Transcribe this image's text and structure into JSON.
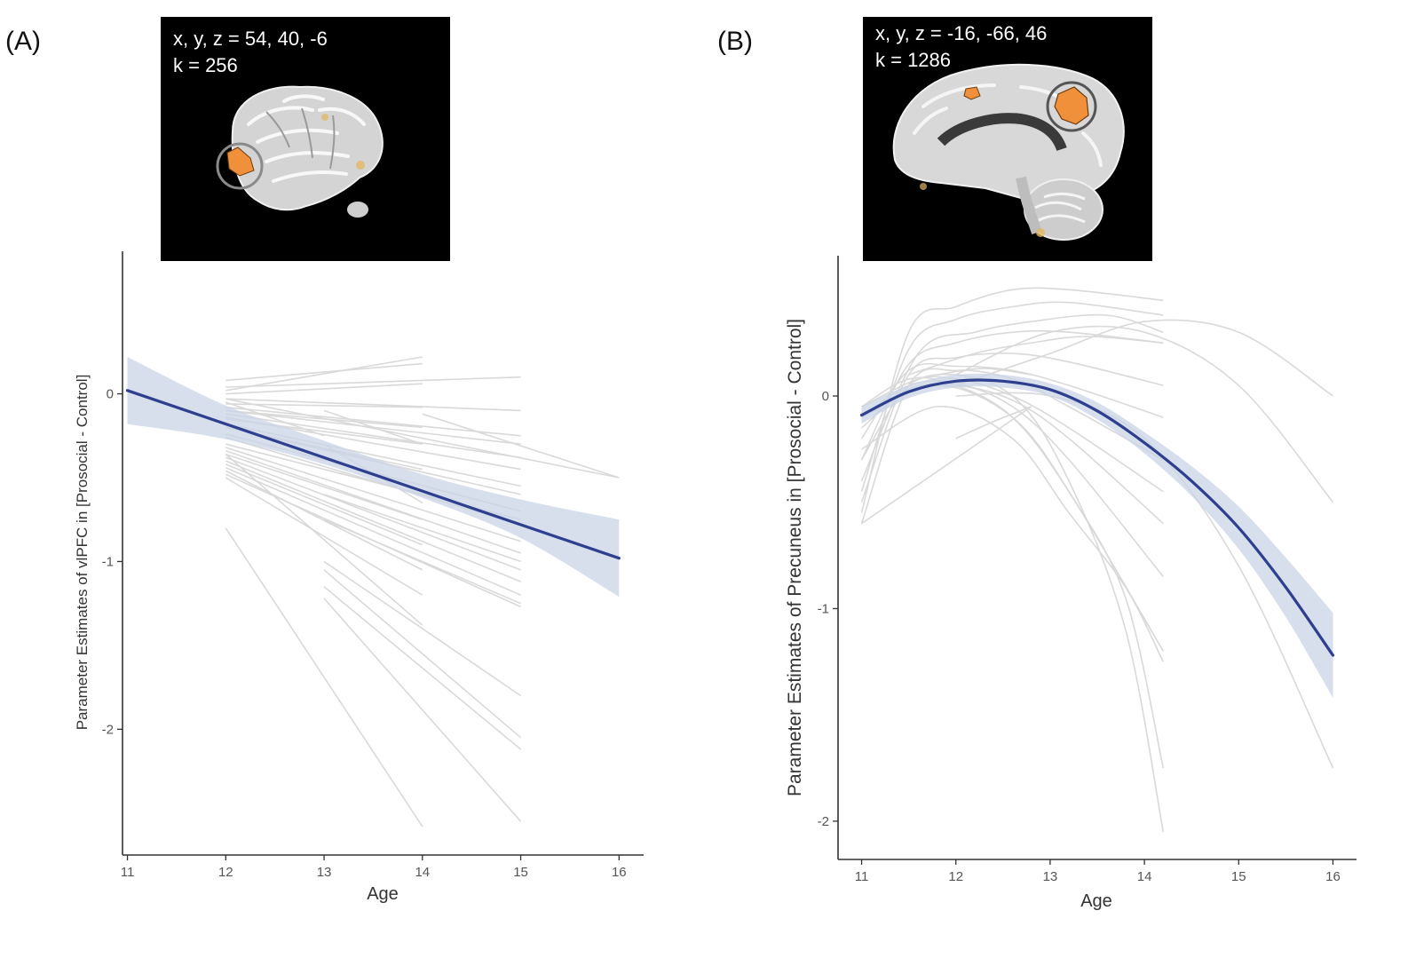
{
  "colors": {
    "fit_line": "#2e3f8f",
    "ribbon": "#c9d3e6",
    "individual_lines": "#d9d9d9",
    "axis": "#333333",
    "inset_bg": "#000000",
    "activation": "#f0903a"
  },
  "chart_data": [
    {
      "panel": "(A)",
      "type": "line",
      "inset": {
        "coords": "x, y, z = 54, 40, -6",
        "cluster": "k = 256",
        "view": "lateral right hemisphere",
        "region_icon": "brain-lateral-icon"
      },
      "xlabel": "Age",
      "ylabel": "Parameter Estimates of vlPFC in [Prosocial - Control]",
      "xlim": [
        10.95,
        16.25
      ],
      "ylim": [
        -2.75,
        0.85
      ],
      "xticks": [
        11,
        12,
        13,
        14,
        15,
        16
      ],
      "yticks": [
        0,
        -1,
        -2
      ],
      "model": "linear",
      "fit": {
        "x": [
          11,
          16
        ],
        "y": [
          0.02,
          -0.98
        ]
      },
      "ribbon": {
        "x": [
          11,
          12,
          13,
          14,
          15,
          16
        ],
        "lower": [
          -0.18,
          -0.27,
          -0.42,
          -0.62,
          -0.86,
          -1.21
        ],
        "upper": [
          0.22,
          -0.07,
          -0.28,
          -0.48,
          -0.63,
          -0.75
        ]
      },
      "individual_lines": [
        {
          "x": [
            12,
            14
          ],
          "y": [
            0.02,
            0.22
          ]
        },
        {
          "x": [
            12,
            14
          ],
          "y": [
            0.08,
            0.18
          ]
        },
        {
          "x": [
            12,
            15
          ],
          "y": [
            0.04,
            0.1
          ]
        },
        {
          "x": [
            12,
            14
          ],
          "y": [
            0.0,
            0.06
          ]
        },
        {
          "x": [
            12,
            15
          ],
          "y": [
            -0.03,
            -0.1
          ]
        },
        {
          "x": [
            12,
            16
          ],
          "y": [
            -0.03,
            -0.5
          ]
        },
        {
          "x": [
            12,
            14
          ],
          "y": [
            -0.06,
            -0.08
          ]
        },
        {
          "x": [
            12,
            15
          ],
          "y": [
            -0.08,
            -0.25
          ]
        },
        {
          "x": [
            12,
            15
          ],
          "y": [
            -0.1,
            -0.3
          ]
        },
        {
          "x": [
            12,
            14
          ],
          "y": [
            -0.1,
            -0.2
          ]
        },
        {
          "x": [
            12,
            15
          ],
          "y": [
            -0.12,
            -0.38
          ]
        },
        {
          "x": [
            12,
            15
          ],
          "y": [
            -0.14,
            -0.45
          ]
        },
        {
          "x": [
            12,
            14
          ],
          "y": [
            -0.15,
            -0.3
          ]
        },
        {
          "x": [
            12,
            15
          ],
          "y": [
            -0.18,
            -0.55
          ]
        },
        {
          "x": [
            12,
            15
          ],
          "y": [
            -0.2,
            -0.6
          ]
        },
        {
          "x": [
            12,
            14
          ],
          "y": [
            -0.2,
            -0.45
          ]
        },
        {
          "x": [
            12,
            15
          ],
          "y": [
            -0.24,
            -0.7
          ]
        },
        {
          "x": [
            12,
            15
          ],
          "y": [
            -0.26,
            -0.78
          ]
        },
        {
          "x": [
            12,
            14
          ],
          "y": [
            -0.3,
            -0.6
          ]
        },
        {
          "x": [
            12,
            15
          ],
          "y": [
            -0.32,
            -0.88
          ]
        },
        {
          "x": [
            12,
            15
          ],
          "y": [
            -0.34,
            -0.95
          ]
        },
        {
          "x": [
            12,
            14
          ],
          "y": [
            -0.36,
            -0.75
          ]
        },
        {
          "x": [
            12,
            15
          ],
          "y": [
            -0.38,
            -1.05
          ]
        },
        {
          "x": [
            12,
            15
          ],
          "y": [
            -0.4,
            -1.12
          ]
        },
        {
          "x": [
            12,
            14
          ],
          "y": [
            -0.42,
            -0.9
          ]
        },
        {
          "x": [
            12,
            15
          ],
          "y": [
            -0.44,
            -1.2
          ]
        },
        {
          "x": [
            12,
            14
          ],
          "y": [
            -0.46,
            -1.05
          ]
        },
        {
          "x": [
            12,
            15
          ],
          "y": [
            -0.48,
            -1.27
          ]
        },
        {
          "x": [
            12,
            14
          ],
          "y": [
            -0.5,
            -1.2
          ]
        },
        {
          "x": [
            12,
            14
          ],
          "y": [
            -0.36,
            -1.38
          ]
        },
        {
          "x": [
            13,
            15
          ],
          "y": [
            -0.45,
            -0.75
          ]
        },
        {
          "x": [
            13,
            15
          ],
          "y": [
            -0.6,
            -1.0
          ]
        },
        {
          "x": [
            13,
            15
          ],
          "y": [
            -0.75,
            -1.25
          ]
        },
        {
          "x": [
            13,
            15
          ],
          "y": [
            -1.0,
            -1.8
          ]
        },
        {
          "x": [
            13,
            15
          ],
          "y": [
            -1.05,
            -2.05
          ]
        },
        {
          "x": [
            13,
            15
          ],
          "y": [
            -1.15,
            -2.12
          ]
        },
        {
          "x": [
            13,
            15
          ],
          "y": [
            -1.22,
            -2.55
          ]
        },
        {
          "x": [
            12,
            14
          ],
          "y": [
            -0.8,
            -2.58
          ]
        },
        {
          "x": [
            13,
            14
          ],
          "y": [
            -0.1,
            -0.3
          ]
        },
        {
          "x": [
            13,
            14
          ],
          "y": [
            -0.3,
            -0.65
          ]
        },
        {
          "x": [
            14,
            16
          ],
          "y": [
            -0.12,
            -0.5
          ]
        },
        {
          "x": [
            12,
            13
          ],
          "y": [
            -0.05,
            -0.25
          ]
        }
      ]
    },
    {
      "panel": "(B)",
      "type": "line",
      "inset": {
        "coords": "x, y, z = -16, -66, 46",
        "cluster": "k = 1286",
        "view": "midsagittal",
        "region_icon": "brain-sagittal-icon"
      },
      "xlabel": "Age",
      "ylabel": "Parameter Estimates of Precuneus in [Prosocial - Control]",
      "xlim": [
        10.75,
        16.25
      ],
      "ylim": [
        -2.18,
        0.66
      ],
      "xticks": [
        11,
        12,
        13,
        14,
        15,
        16
      ],
      "yticks": [
        0,
        -1,
        -2
      ],
      "model": "quadratic",
      "fit": {
        "x": [
          11,
          11.5,
          12,
          12.5,
          13,
          13.5,
          14,
          14.5,
          15,
          15.5,
          16
        ],
        "y": [
          -0.09,
          0.02,
          0.07,
          0.07,
          0.03,
          -0.07,
          -0.22,
          -0.4,
          -0.62,
          -0.9,
          -1.22
        ]
      },
      "ribbon": {
        "x": [
          11,
          11.5,
          12,
          12.5,
          13,
          13.5,
          14,
          14.5,
          15,
          15.5,
          16
        ],
        "lower": [
          -0.13,
          -0.01,
          0.04,
          0.04,
          0.0,
          -0.11,
          -0.27,
          -0.47,
          -0.72,
          -1.04,
          -1.42
        ],
        "upper": [
          -0.05,
          0.05,
          0.1,
          0.1,
          0.06,
          -0.03,
          -0.17,
          -0.33,
          -0.52,
          -0.76,
          -1.02
        ]
      },
      "individual_lines": [
        {
          "x": [
            11,
            11.5,
            12,
            12.6,
            13.2,
            14.2
          ],
          "y": [
            -0.55,
            0.3,
            0.42,
            0.5,
            0.5,
            0.45
          ]
        },
        {
          "x": [
            11,
            11.5,
            12,
            12.6,
            13.2,
            14.2
          ],
          "y": [
            -0.45,
            0.22,
            0.36,
            0.42,
            0.44,
            0.38
          ]
        },
        {
          "x": [
            11,
            11.6,
            12.2,
            12.8,
            13.6,
            14.2
          ],
          "y": [
            -0.4,
            0.2,
            0.3,
            0.35,
            0.38,
            0.3
          ]
        },
        {
          "x": [
            11,
            11.5,
            12,
            12.6,
            13.2,
            14.2
          ],
          "y": [
            -0.3,
            0.15,
            0.25,
            0.3,
            0.3,
            0.25
          ]
        },
        {
          "x": [
            11,
            11.5,
            12,
            12.6,
            13.2,
            14.2
          ],
          "y": [
            -0.5,
            0.1,
            0.18,
            0.2,
            0.16,
            0.05
          ]
        },
        {
          "x": [
            11,
            11.5,
            12,
            12.6,
            13.2,
            14.2
          ],
          "y": [
            -0.2,
            0.12,
            0.14,
            0.12,
            0.05,
            -0.1
          ]
        },
        {
          "x": [
            11,
            11.5,
            12,
            12.6,
            13.2,
            14.2
          ],
          "y": [
            -0.6,
            0.05,
            0.12,
            0.08,
            -0.05,
            -0.3
          ]
        },
        {
          "x": [
            11,
            11.5,
            12,
            12.6,
            13.2,
            14.2
          ],
          "y": [
            -0.3,
            0.05,
            0.08,
            0.0,
            -0.15,
            -0.45
          ]
        },
        {
          "x": [
            11,
            11.5,
            12,
            12.6,
            13.2,
            14.2
          ],
          "y": [
            -0.15,
            0.03,
            0.05,
            -0.02,
            -0.2,
            -0.6
          ]
        },
        {
          "x": [
            11,
            11.5,
            12,
            12.6,
            13.2,
            14.2
          ],
          "y": [
            -0.1,
            0.05,
            0.06,
            -0.05,
            -0.3,
            -0.85
          ]
        },
        {
          "x": [
            11,
            11.5,
            12,
            12.6,
            13.2,
            14.2
          ],
          "y": [
            -0.05,
            0.08,
            0.05,
            -0.1,
            -0.45,
            -1.2
          ]
        },
        {
          "x": [
            11,
            11.8,
            12.6,
            13.2,
            13.8,
            14.2
          ],
          "y": [
            -0.05,
            0.1,
            0.0,
            -0.4,
            -1.1,
            -2.05
          ]
        },
        {
          "x": [
            11,
            11.8,
            12.6,
            13.2,
            13.8,
            14.2
          ],
          "y": [
            -0.1,
            0.05,
            -0.1,
            -0.45,
            -0.95,
            -1.75
          ]
        },
        {
          "x": [
            11,
            11.8,
            12.6,
            13.2,
            13.8,
            14.2
          ],
          "y": [
            -0.25,
            -0.05,
            -0.2,
            -0.55,
            -0.9,
            -1.25
          ]
        },
        {
          "x": [
            11,
            12.8
          ],
          "y": [
            -0.6,
            -0.05
          ]
        },
        {
          "x": [
            11.5,
            12.2,
            12.8,
            13.4,
            14.2
          ],
          "y": [
            0.1,
            0.2,
            0.25,
            0.28,
            0.25
          ]
        },
        {
          "x": [
            12,
            12.4,
            12.8
          ],
          "y": [
            -0.2,
            -0.12,
            -0.05
          ]
        },
        {
          "x": [
            11.8,
            12.3,
            12.8
          ],
          "y": [
            0.1,
            0.13,
            0.1
          ]
        },
        {
          "x": [
            12,
            13,
            14,
            15,
            16
          ],
          "y": [
            0.05,
            0.2,
            0.35,
            0.3,
            0.0
          ]
        },
        {
          "x": [
            12,
            13,
            14,
            15,
            16
          ],
          "y": [
            0.1,
            0.3,
            0.3,
            0.05,
            -0.5
          ]
        },
        {
          "x": [
            12,
            13,
            14,
            15,
            16
          ],
          "y": [
            0.0,
            0.0,
            -0.2,
            -0.8,
            -1.75
          ]
        }
      ]
    }
  ]
}
